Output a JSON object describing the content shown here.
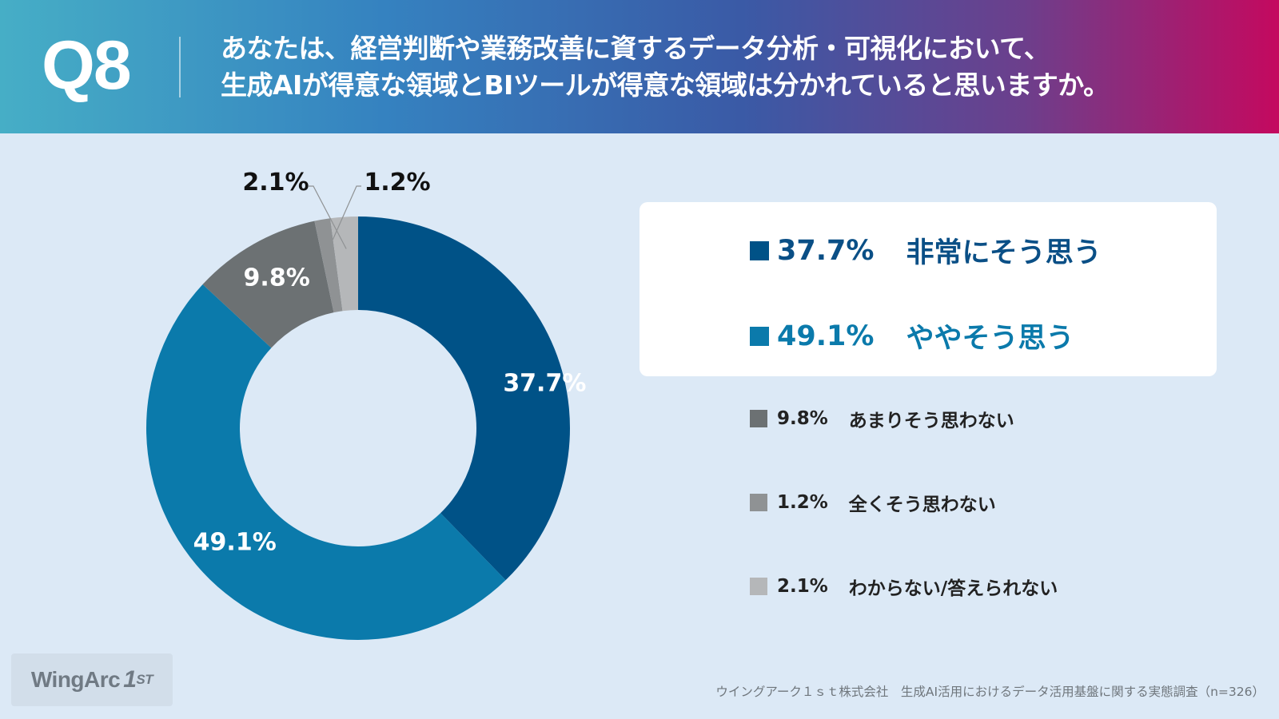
{
  "header": {
    "qnum": "Q8",
    "question_line1": "あなたは、経営判断や業務改善に資するデータ分析・可視化において、",
    "question_line2": "生成AIが得意な領域とBIツールが得意な領域は分かれていると思いますか。"
  },
  "chart_data": {
    "type": "pie",
    "donut": true,
    "title": "",
    "legend_position": "right",
    "series": [
      {
        "name": "非常にそう思う",
        "value": 37.7,
        "label": "37.7%",
        "color": "#005287"
      },
      {
        "name": "ややそう思う",
        "value": 49.1,
        "label": "49.1%",
        "color": "#0b7aab"
      },
      {
        "name": "あまりそう思わない",
        "value": 9.8,
        "label": "9.8%",
        "color": "#6c7173"
      },
      {
        "name": "全くそう思わない",
        "value": 1.2,
        "label": "1.2%",
        "color": "#8f9294"
      },
      {
        "name": "わからない/答えられない",
        "value": 2.1,
        "label": "2.1%",
        "color": "#b5b7b9"
      }
    ],
    "slice_order": [
      0,
      1,
      2,
      3,
      4
    ]
  },
  "legend": {
    "items": [
      {
        "pct": "37.7%",
        "text": "非常にそう思う",
        "color": "#005287"
      },
      {
        "pct": "49.1%",
        "text": "ややそう思う",
        "color": "#0b7aab"
      },
      {
        "pct": "9.8%",
        "text": "あまりそう思わない",
        "color": "#6c7173"
      },
      {
        "pct": "1.2%",
        "text": "全くそう思わない",
        "color": "#8f9294"
      },
      {
        "pct": "2.1%",
        "text": "わからない/答えられない",
        "color": "#b5b7b9"
      }
    ]
  },
  "footer": {
    "logo_main": "WingArc",
    "logo_mark": "1",
    "logo_st": "ST",
    "source": "ウイングアーク１ｓｔ株式会社　生成AI活用におけるデータ活用基盤に関する実態調査（n=326）"
  }
}
